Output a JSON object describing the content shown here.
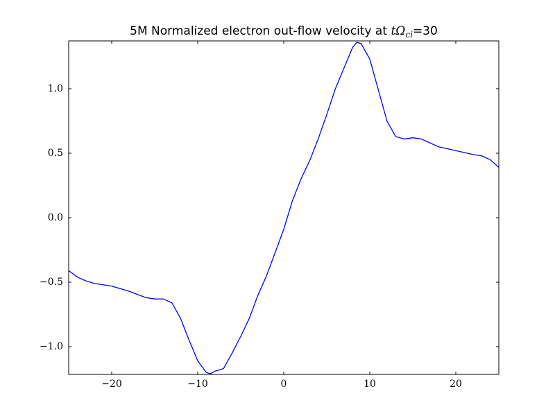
{
  "chart_data": {
    "type": "line",
    "title": {
      "text": "5M Normalized electron out-flow velocity at ",
      "math": "tΩ",
      "sub": "ci",
      "suffix": "=30"
    },
    "x": [
      -25,
      -24,
      -23,
      -22,
      -20,
      -18,
      -16,
      -15,
      -14,
      -13,
      -12,
      -11,
      -10,
      -9,
      -8.5,
      -8,
      -7,
      -6,
      -5,
      -4,
      -3,
      -2,
      -1,
      0,
      1,
      2,
      3,
      4,
      5,
      6,
      7,
      8,
      8.5,
      9,
      10,
      11,
      12,
      13,
      14,
      15,
      16,
      17,
      18,
      20,
      22,
      23,
      24,
      25
    ],
    "series": [
      {
        "color": "#0000ff",
        "values": [
          -0.41,
          -0.46,
          -0.49,
          -0.51,
          -0.53,
          -0.57,
          -0.62,
          -0.63,
          -0.63,
          -0.66,
          -0.78,
          -0.95,
          -1.11,
          -1.2,
          -1.21,
          -1.19,
          -1.17,
          -1.05,
          -0.92,
          -0.78,
          -0.6,
          -0.45,
          -0.27,
          -0.09,
          0.13,
          0.3,
          0.44,
          0.61,
          0.8,
          1.0,
          1.16,
          1.32,
          1.36,
          1.35,
          1.23,
          0.99,
          0.75,
          0.63,
          0.61,
          0.62,
          0.61,
          0.58,
          0.55,
          0.52,
          0.49,
          0.48,
          0.45,
          0.39
        ]
      }
    ],
    "xlim": [
      -25,
      25
    ],
    "ylim": [
      -1.215,
      1.371
    ],
    "xticks": [
      {
        "value": -20,
        "label": "−20"
      },
      {
        "value": -10,
        "label": "−10"
      },
      0,
      10,
      20
    ],
    "yticks": [
      {
        "value": -1.0,
        "label": "−1.0"
      },
      {
        "value": -0.5,
        "label": "−0.5"
      },
      {
        "value": 0.0,
        "label": "0.0"
      },
      {
        "value": 0.5,
        "label": "0.5"
      },
      {
        "value": 1.0,
        "label": "1.0"
      }
    ],
    "grid": false
  }
}
